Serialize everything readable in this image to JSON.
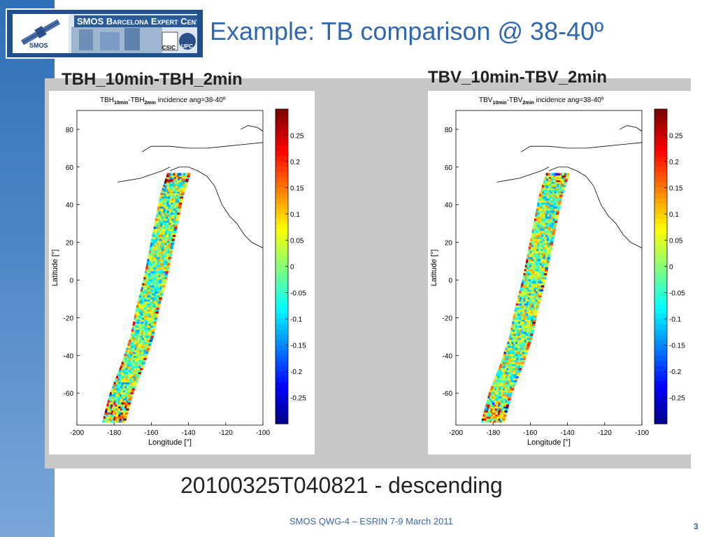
{
  "header": {
    "logo_title": "SMOS Barcelona Expert Centre",
    "logo_smos": "SMOS",
    "logo_csic": "CSIC",
    "logo_upc": "UPC",
    "slide_title": "Example: TB comparison @ 38-40º"
  },
  "panels": {
    "left_heading": "TBH_10min-TBH_2min",
    "right_heading": "TBV_10min-TBV_2min"
  },
  "caption": "20100325T040821 - descending",
  "footer": {
    "text": "SMOS QWG-4 – ESRIN 7-9 March 2011",
    "page": "3"
  },
  "colors": {
    "title_blue": "#2f67b0",
    "panel_gray": "#c8c8c8",
    "side_bar": "#3f7cc0"
  },
  "chart_data": [
    {
      "type": "heatmap",
      "title_parts": [
        "TBH",
        "10min",
        "-TBH",
        "2min",
        " incidence ang=38-40º"
      ],
      "xlabel": "Longitude [°]",
      "ylabel": "Latitude [°]",
      "xlim": [
        -200,
        -100
      ],
      "ylim": [
        -77,
        90
      ],
      "xticks": [
        -200,
        -180,
        -160,
        -140,
        -120,
        -100
      ],
      "yticks": [
        80,
        60,
        40,
        20,
        0,
        -20,
        -40,
        -60
      ],
      "colorbar": {
        "min": -0.3,
        "max": 0.3,
        "ticks": [
          0.25,
          0.2,
          0.15,
          0.1,
          0.05,
          0,
          -0.05,
          -0.1,
          -0.15,
          -0.2,
          -0.25
        ],
        "colormap": "jet"
      },
      "swath_centerline": [
        [
          -180,
          -75
        ],
        [
          -176,
          -60
        ],
        [
          -170,
          -45
        ],
        [
          -165,
          -30
        ],
        [
          -162,
          -15
        ],
        [
          -158,
          0
        ],
        [
          -155,
          15
        ],
        [
          -152,
          30
        ],
        [
          -149,
          45
        ],
        [
          -145,
          57
        ]
      ]
    },
    {
      "type": "heatmap",
      "title_parts": [
        "TBV",
        "10min",
        "-TBV",
        "2min",
        " incidence ang=38-40º"
      ],
      "xlabel": "Longitude [°]",
      "ylabel": "Latitude [°]",
      "xlim": [
        -200,
        -100
      ],
      "ylim": [
        -77,
        90
      ],
      "xticks": [
        -200,
        -180,
        -160,
        -140,
        -120,
        -100
      ],
      "yticks": [
        80,
        60,
        40,
        20,
        0,
        -20,
        -40,
        -60
      ],
      "colorbar": {
        "min": -0.3,
        "max": 0.3,
        "ticks": [
          0.25,
          0.2,
          0.15,
          0.1,
          0.05,
          0,
          -0.05,
          -0.1,
          -0.15,
          -0.2,
          -0.25
        ],
        "colormap": "jet"
      },
      "swath_centerline": [
        [
          -180,
          -75
        ],
        [
          -176,
          -60
        ],
        [
          -170,
          -45
        ],
        [
          -165,
          -30
        ],
        [
          -162,
          -15
        ],
        [
          -158,
          0
        ],
        [
          -155,
          15
        ],
        [
          -152,
          30
        ],
        [
          -149,
          45
        ],
        [
          -145,
          57
        ]
      ]
    }
  ]
}
